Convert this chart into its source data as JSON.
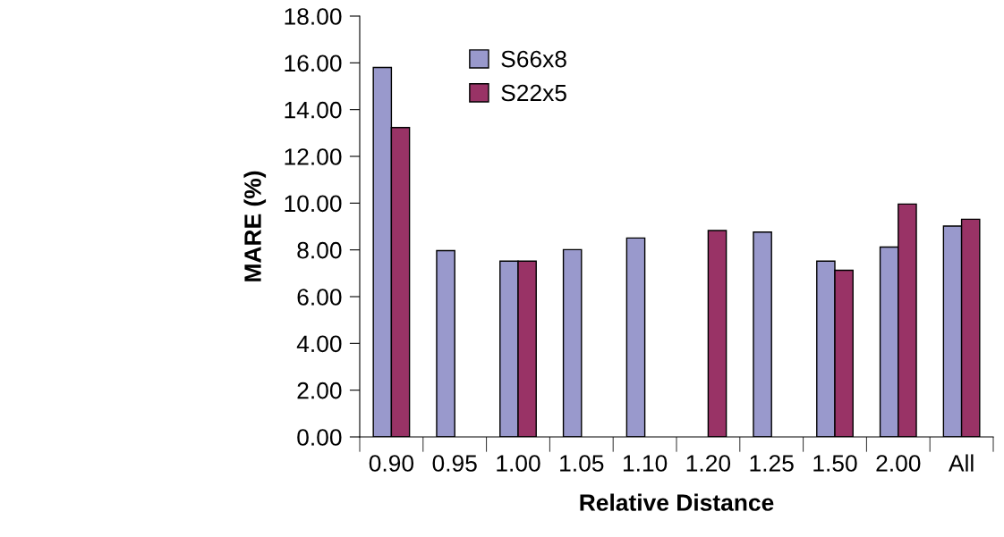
{
  "chart_data": {
    "type": "bar",
    "xlabel": "Relative Distance",
    "ylabel": "MARE (%)",
    "categories": [
      "0.90",
      "0.95",
      "1.00",
      "1.05",
      "1.10",
      "1.20",
      "1.25",
      "1.50",
      "2.00",
      "All"
    ],
    "series": [
      {
        "name": "S66x8",
        "color": "#9999cc",
        "values": [
          15.8,
          7.97,
          7.52,
          8.01,
          8.51,
          null,
          8.76,
          7.52,
          8.12,
          9.02
        ]
      },
      {
        "name": "S22x5",
        "color": "#993366",
        "values": [
          13.23,
          null,
          7.52,
          null,
          null,
          8.83,
          null,
          7.13,
          9.96,
          9.31
        ]
      }
    ],
    "ylim": [
      0,
      18
    ],
    "yticks": [
      {
        "value": 0,
        "label": "0.00"
      },
      {
        "value": 2,
        "label": "2.00"
      },
      {
        "value": 4,
        "label": "4.00"
      },
      {
        "value": 6,
        "label": "6.00"
      },
      {
        "value": 8,
        "label": "8.00"
      },
      {
        "value": 10,
        "label": "10.00"
      },
      {
        "value": 12,
        "label": "12.00"
      },
      {
        "value": 14,
        "label": "14.00"
      },
      {
        "value": 16,
        "label": "16.00"
      },
      {
        "value": 18,
        "label": "18.00"
      }
    ],
    "grid": false,
    "legend": "top left"
  }
}
